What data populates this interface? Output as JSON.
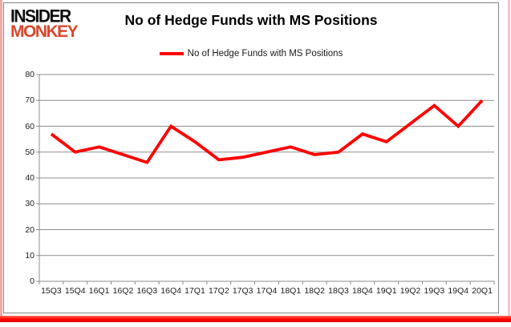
{
  "logo": {
    "line1": "INSIDER",
    "line2": "MONKEY",
    "color1": "#0d0d0d",
    "color2": "#d9472b"
  },
  "header": {
    "title": "No of Hedge Funds with MS Positions"
  },
  "legend": {
    "label": "No of Hedge Funds with MS Positions",
    "color": "#fe0000"
  },
  "chart_data": {
    "type": "line",
    "title": "No of Hedge Funds with MS Positions",
    "xlabel": "",
    "ylabel": "",
    "categories": [
      "15Q3",
      "15Q4",
      "16Q1",
      "16Q2",
      "16Q3",
      "16Q4",
      "17Q1",
      "17Q2",
      "17Q3",
      "17Q4",
      "18Q1",
      "18Q2",
      "18Q3",
      "18Q4",
      "19Q1",
      "19Q2",
      "19Q3",
      "19Q4",
      "20Q1"
    ],
    "series": [
      {
        "name": "No of Hedge Funds with MS Positions",
        "color": "#fe0000",
        "values": [
          57,
          50,
          52,
          49,
          46,
          60,
          54,
          47,
          48,
          50,
          52,
          49,
          50,
          57,
          54,
          61,
          68,
          60,
          70
        ]
      }
    ],
    "ylim": [
      0,
      80
    ],
    "ytick_interval": 10,
    "grid": "horizontal",
    "gridline_color": "#8c8c8c",
    "legend_position": "top-center"
  }
}
